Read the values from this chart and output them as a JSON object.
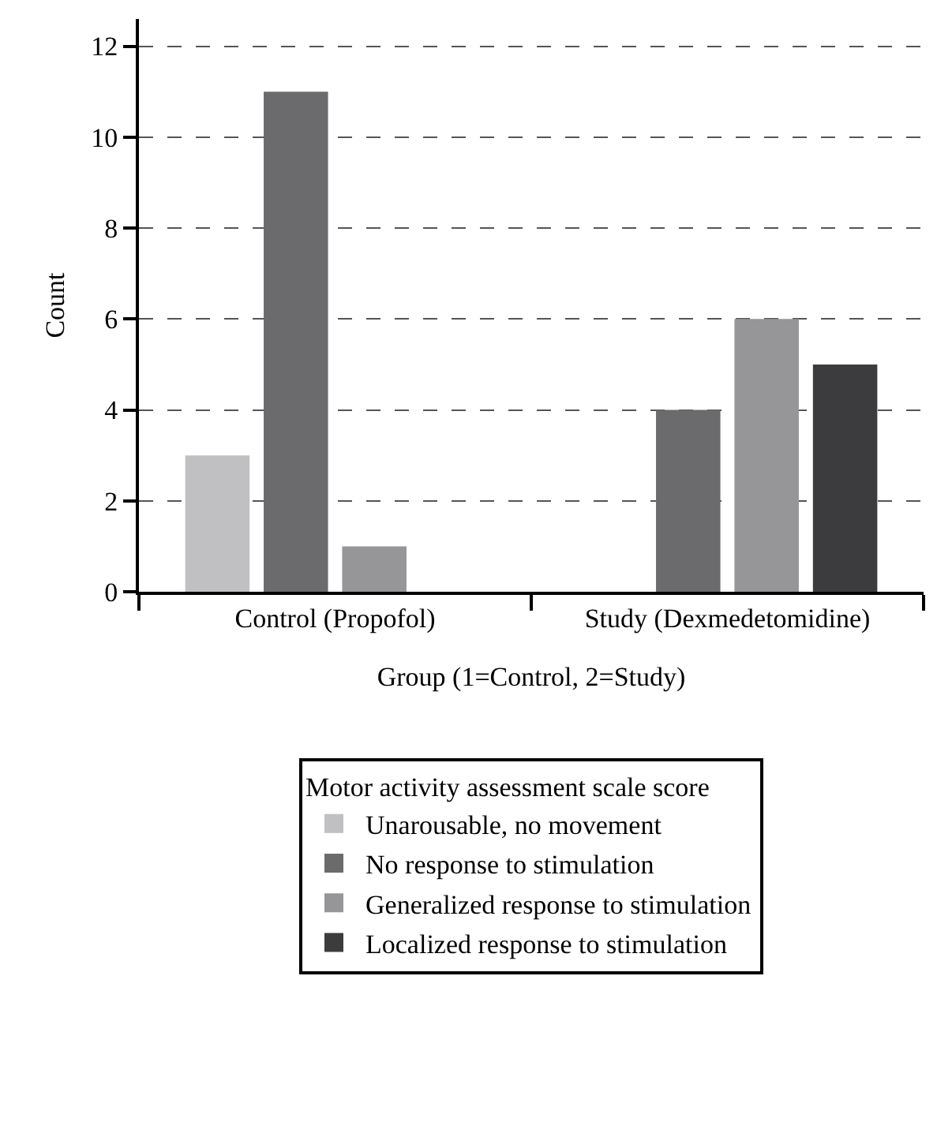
{
  "chart_data": {
    "type": "bar",
    "xlabel": "Group (1=Control, 2=Study)",
    "ylabel": "Count",
    "legend_title": "Motor activity assessment scale score",
    "categories": [
      "Control (Propofol)",
      "Study (Dexmedetomidine)"
    ],
    "series": [
      {
        "name": "Unarousable, no movement",
        "color": "#c0c0c3",
        "values": [
          3,
          null
        ]
      },
      {
        "name": "No response to stimulation",
        "color": "#6b6b6e",
        "values": [
          11,
          4
        ]
      },
      {
        "name": "Generalized response to stimulation",
        "color": "#969699",
        "values": [
          1,
          6
        ]
      },
      {
        "name": "Localized response to stimulation",
        "color": "#3c3c3f",
        "values": [
          null,
          5
        ]
      }
    ],
    "ylim": [
      0,
      12.6
    ],
    "yticks": [
      0,
      2,
      4,
      6,
      8,
      10,
      12
    ],
    "grid": "y",
    "legend": "bottom"
  }
}
